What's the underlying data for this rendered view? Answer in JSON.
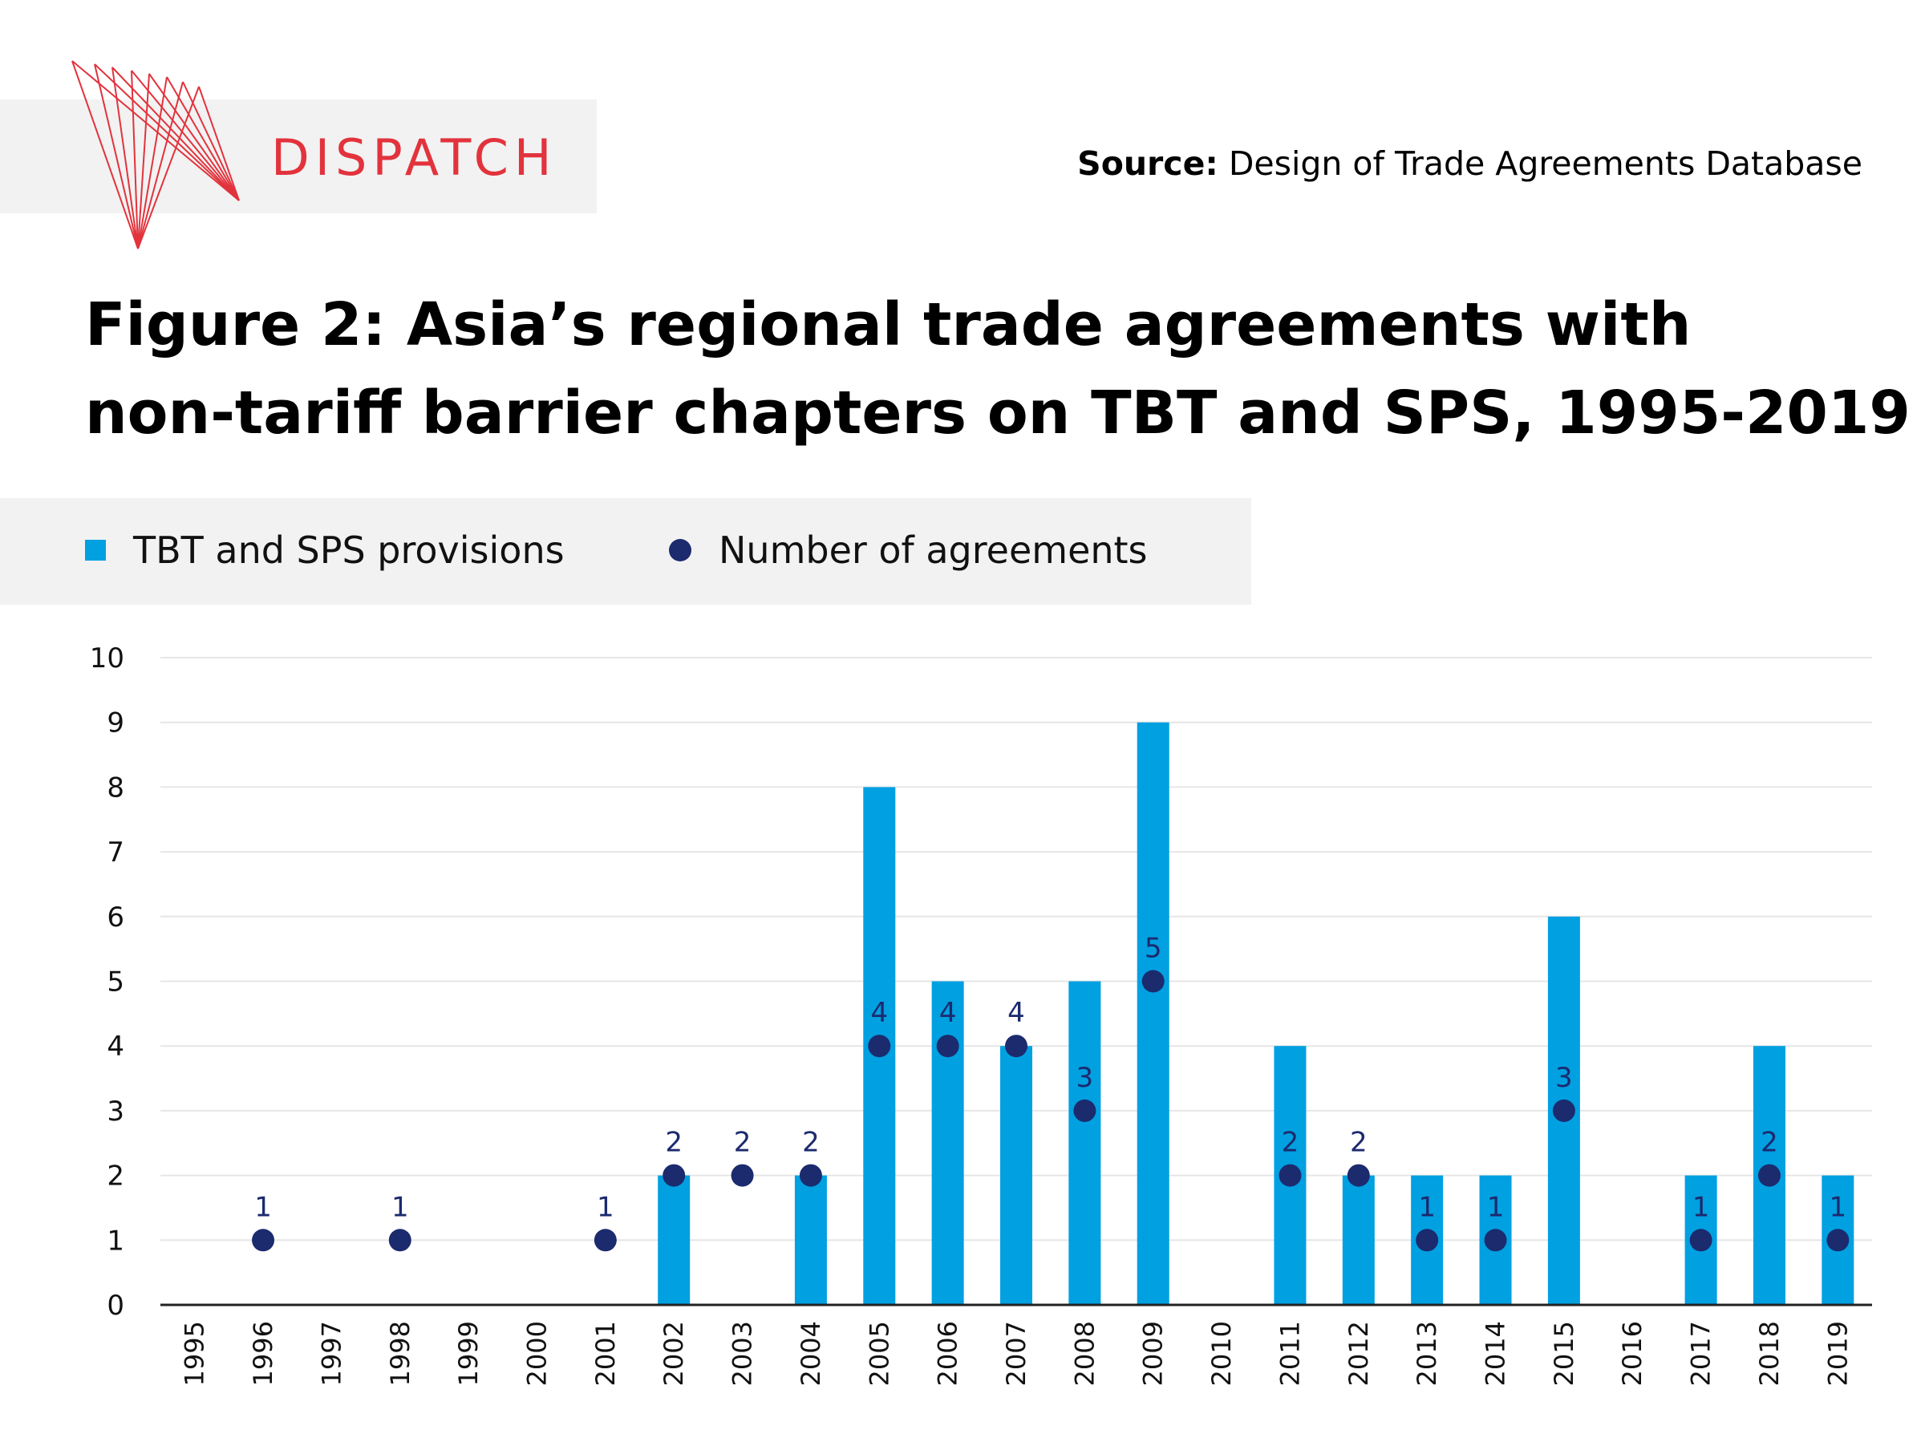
{
  "brand": {
    "name": "DISPATCH",
    "color": "#e2333d"
  },
  "source": {
    "label": "Source:",
    "text": "Design of Trade Agreements Database"
  },
  "title": {
    "line1": "Figure 2: Asia’s regional trade agreements with",
    "line2": "non-tariff barrier chapters on TBT and SPS, 1995-2019"
  },
  "legend": {
    "placement": "top-left",
    "items": [
      {
        "label": "TBT and SPS provisions",
        "shape": "square",
        "color": "#00a0e1"
      },
      {
        "label": "Number of agreements",
        "shape": "dot",
        "color": "#1c2a6e"
      }
    ]
  },
  "chart_data": {
    "type": "bar",
    "title": "Figure 2: Asia’s regional trade agreements with non-tariff barrier chapters on TBT and SPS, 1995-2019",
    "xlabel": "",
    "ylabel": "",
    "ylim": [
      0,
      10
    ],
    "yticks": [
      0,
      1,
      2,
      3,
      4,
      5,
      6,
      7,
      8,
      9,
      10
    ],
    "grid": true,
    "categories": [
      "1995",
      "1996",
      "1997",
      "1998",
      "1999",
      "2000",
      "2001",
      "2002",
      "2003",
      "2004",
      "2005",
      "2006",
      "2007",
      "2008",
      "2009",
      "2010",
      "2011",
      "2012",
      "2013",
      "2014",
      "2015",
      "2016",
      "2017",
      "2018",
      "2019"
    ],
    "series": [
      {
        "name": "TBT and SPS provisions",
        "type": "bar",
        "color": "#00a0e1",
        "values": [
          0,
          0,
          0,
          0,
          0,
          0,
          0,
          2,
          0,
          2,
          8,
          5,
          4,
          5,
          9,
          0,
          4,
          2,
          2,
          2,
          6,
          0,
          2,
          4,
          2
        ]
      },
      {
        "name": "Number of agreements",
        "type": "scatter",
        "color": "#1c2a6e",
        "values": [
          null,
          1,
          null,
          1,
          null,
          null,
          1,
          2,
          2,
          2,
          4,
          4,
          4,
          3,
          5,
          null,
          2,
          2,
          1,
          1,
          3,
          null,
          1,
          2,
          1
        ],
        "data_labels": true
      }
    ]
  }
}
